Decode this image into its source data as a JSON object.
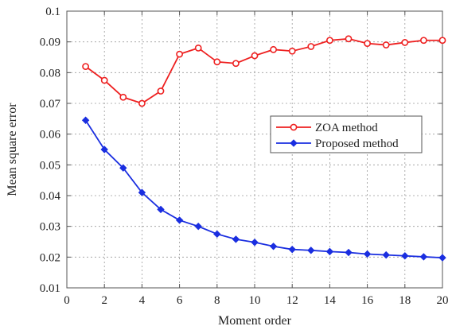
{
  "chart_data": {
    "type": "line",
    "title": "",
    "xlabel": "Moment order",
    "ylabel": "Mean square error",
    "xlim": [
      0,
      20
    ],
    "ylim": [
      0.01,
      0.1
    ],
    "xticks": [
      0,
      2,
      4,
      6,
      8,
      10,
      12,
      14,
      16,
      18,
      20
    ],
    "yticks": [
      0.01,
      0.02,
      0.03,
      0.04,
      0.05,
      0.06,
      0.07,
      0.08,
      0.09,
      0.1
    ],
    "ytick_labels": [
      "0.01",
      "0.02",
      "0.03",
      "0.04",
      "0.05",
      "0.06",
      "0.07",
      "0.08",
      "0.09",
      "0.1"
    ],
    "grid": true,
    "legend_position": "center-right",
    "x": [
      1,
      2,
      3,
      4,
      5,
      6,
      7,
      8,
      9,
      10,
      11,
      12,
      13,
      14,
      15,
      16,
      17,
      18,
      19,
      20
    ],
    "series": [
      {
        "name": "ZOA method",
        "color": "#ee2020",
        "marker": "circle",
        "values": [
          0.082,
          0.0775,
          0.072,
          0.07,
          0.074,
          0.086,
          0.088,
          0.0835,
          0.083,
          0.0855,
          0.0875,
          0.087,
          0.0885,
          0.0905,
          0.091,
          0.0895,
          0.089,
          0.0898,
          0.0905,
          0.0905
        ]
      },
      {
        "name": "Proposed method",
        "color": "#1a2ee0",
        "marker": "diamond",
        "values": [
          0.0645,
          0.055,
          0.049,
          0.041,
          0.0355,
          0.032,
          0.03,
          0.0275,
          0.0258,
          0.0248,
          0.0235,
          0.0225,
          0.0222,
          0.0218,
          0.0215,
          0.021,
          0.0207,
          0.0204,
          0.0201,
          0.0198
        ]
      }
    ]
  }
}
